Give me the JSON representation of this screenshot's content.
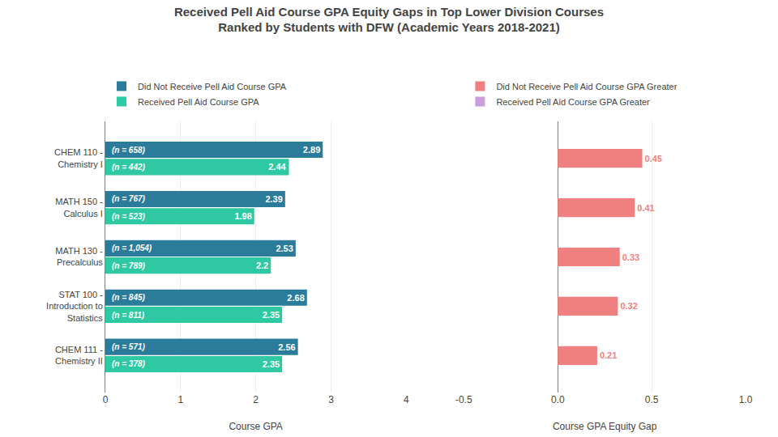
{
  "chart_data": [
    {
      "type": "bar",
      "title": "Received Pell Aid Course GPA Equity Gaps in Top Lower Division Courses\nRanked by Students with DFW (Academic Years 2018-2021)",
      "orientation": "horizontal",
      "categories": [
        "CHEM 111 -\nChemistry II",
        "STAT 100 -\nIntroduction to\nStatistics",
        "MATH 130 -\nPrecalculus",
        "MATH 150 -\nCalculus I",
        "CHEM 110 -\nChemistry I"
      ],
      "series": [
        {
          "name": "Did Not Receive Pell Aid Course GPA",
          "color": "#2B7B9B",
          "values": [
            2.56,
            2.68,
            2.53,
            2.39,
            2.89
          ],
          "count_labels": [
            "(n = 571)",
            "(n = 845)",
            "(n = 1,054)",
            "(n = 767)",
            "(n = 658)"
          ]
        },
        {
          "name": "Received Pell Aid Course GPA",
          "color": "#2EC9A3",
          "values": [
            2.35,
            2.35,
            2.2,
            1.98,
            2.44
          ],
          "count_labels": [
            "(n = 378)",
            "(n = 811)",
            "(n = 789)",
            "(n = 523)",
            "(n = 442)"
          ]
        }
      ],
      "xlabel": "Course GPA",
      "xlim": [
        0,
        4
      ],
      "xticks": [
        0,
        1,
        2,
        3,
        4
      ],
      "grid": true,
      "data_labels": true,
      "legend": "top"
    },
    {
      "type": "bar",
      "orientation": "horizontal",
      "categories": [
        "CHEM 111 -\nChemistry II",
        "STAT 100 -\nIntroduction to\nStatistics",
        "MATH 130 -\nPrecalculus",
        "MATH 150 -\nCalculus I",
        "CHEM 110 -\nChemistry I"
      ],
      "series": [
        {
          "name": "Did Not Receive Pell Aid Course GPA Greater",
          "color": "#F08080",
          "values": [
            0.21,
            0.32,
            0.33,
            0.41,
            0.45
          ]
        },
        {
          "name": "Received Pell Aid Course GPA Greater",
          "color": "#C9A0DC",
          "values": [
            null,
            null,
            null,
            null,
            null
          ]
        }
      ],
      "xlabel": "Course GPA Equity Gap",
      "xlim": [
        -0.5,
        1.0
      ],
      "xticks": [
        -0.5,
        {
          "value": 0.0,
          "label": "0.0"
        },
        0.5,
        {
          "value": 1.0,
          "label": "1.0"
        }
      ],
      "grid": true,
      "data_labels": true,
      "tick_labels": "x",
      "legend": "top"
    }
  ]
}
